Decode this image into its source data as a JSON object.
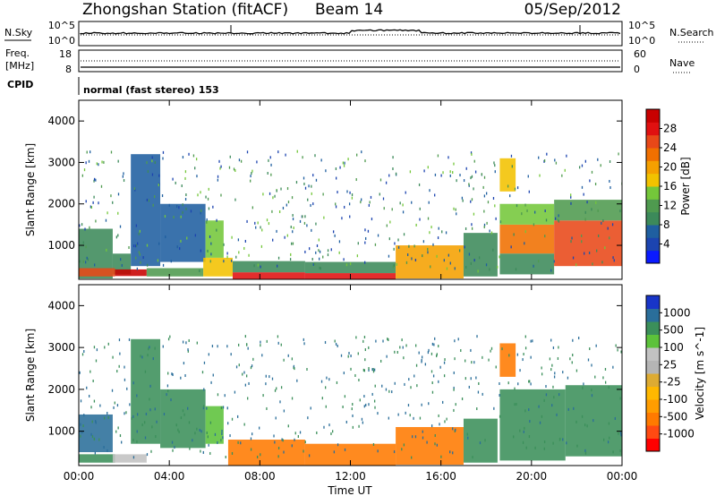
{
  "header": {
    "station": "Zhongshan Station (fitACF)",
    "beam": "Beam 14",
    "date": "05/Sep/2012"
  },
  "top_panel": {
    "nsky_label": "N.Sky",
    "nsky_ticks": [
      "10^5",
      "10^0"
    ],
    "nsearch_label": "N.Search",
    "nsearch_ticks": [
      "10^5",
      "10^0"
    ],
    "freq_label_1": "Freq.",
    "freq_label_2": "[MHz]",
    "freq_ticks": [
      "18",
      "8"
    ],
    "nave_label": "Nave",
    "nave_ticks": [
      "60",
      "0"
    ],
    "cpid_label": "CPID",
    "cpid_value": "normal (fast stereo) 153"
  },
  "colors": {
    "power_scale": [
      "#0a1aff",
      "#1c44b0",
      "#1f5fa0",
      "#3c8a5a",
      "#4f9a4f",
      "#74c73a",
      "#f2c200",
      "#f5a000",
      "#f07000",
      "#e84818",
      "#e01010",
      "#c80000"
    ],
    "velocity_scale": [
      "#ff0000",
      "#ff4a12",
      "#ff7a00",
      "#ff9d00",
      "#ffb800",
      "#ddab33",
      "#b5b5b5",
      "#c2c2c2",
      "#5cc23a",
      "#3b8f5a",
      "#2a6e9a",
      "#1835c8"
    ]
  },
  "chart_data": [
    {
      "type": "heatmap",
      "title": "",
      "xlabel": "Time UT",
      "ylabel": "Slant Range [km]",
      "xlim": [
        "00:00",
        "24:00"
      ],
      "ylim": [
        180,
        4500
      ],
      "x_ticks": [
        "00:00",
        "04:00",
        "08:00",
        "12:00",
        "16:00",
        "20:00",
        "00:00"
      ],
      "y_ticks": [
        1000,
        2000,
        3000,
        4000
      ],
      "colorbar": {
        "label": "Power [dB]",
        "range": [
          0,
          32
        ],
        "ticks": [
          4,
          8,
          12,
          16,
          20,
          24,
          28
        ]
      },
      "regions": [
        {
          "t0": 0.0,
          "t1": 1.5,
          "r0": 200,
          "r1": 1400,
          "value": 10
        },
        {
          "t0": 1.5,
          "t1": 2.3,
          "r0": 300,
          "r1": 800,
          "value": 8
        },
        {
          "t0": 2.3,
          "t1": 3.6,
          "r0": 500,
          "r1": 3200,
          "value": 7
        },
        {
          "t0": 3.6,
          "t1": 5.6,
          "r0": 600,
          "r1": 2000,
          "value": 6
        },
        {
          "t0": 5.6,
          "t1": 6.4,
          "r0": 700,
          "r1": 1600,
          "value": 14
        },
        {
          "t0": 0.0,
          "t1": 1.6,
          "r0": 250,
          "r1": 450,
          "value": 24
        },
        {
          "t0": 1.6,
          "t1": 3.0,
          "r0": 260,
          "r1": 420,
          "value": 30
        },
        {
          "t0": 3.0,
          "t1": 5.5,
          "r0": 250,
          "r1": 450,
          "value": 12
        },
        {
          "t0": 5.5,
          "t1": 6.8,
          "r0": 250,
          "r1": 700,
          "value": 18
        },
        {
          "t0": 6.8,
          "t1": 10.0,
          "r0": 180,
          "r1": 350,
          "value": 29
        },
        {
          "t0": 6.8,
          "t1": 10.0,
          "r0": 350,
          "r1": 620,
          "value": 10
        },
        {
          "t0": 10.0,
          "t1": 14.0,
          "r0": 180,
          "r1": 330,
          "value": 28
        },
        {
          "t0": 10.0,
          "t1": 14.0,
          "r0": 330,
          "r1": 600,
          "value": 9
        },
        {
          "t0": 14.0,
          "t1": 17.0,
          "r0": 200,
          "r1": 1000,
          "value": 20
        },
        {
          "t0": 17.0,
          "t1": 18.5,
          "r0": 250,
          "r1": 1300,
          "value": 10
        },
        {
          "t0": 18.6,
          "t1": 21.0,
          "r0": 800,
          "r1": 1500,
          "value": 22
        },
        {
          "t0": 18.6,
          "t1": 21.0,
          "r0": 1500,
          "r1": 2000,
          "value": 14
        },
        {
          "t0": 18.6,
          "t1": 21.0,
          "r0": 300,
          "r1": 800,
          "value": 8
        },
        {
          "t0": 21.0,
          "t1": 24.0,
          "r0": 500,
          "r1": 1600,
          "value": 24
        },
        {
          "t0": 21.0,
          "t1": 24.0,
          "r0": 1600,
          "r1": 2100,
          "value": 12
        },
        {
          "t0": 18.6,
          "t1": 19.3,
          "r0": 2300,
          "r1": 3100,
          "value": 16
        }
      ]
    },
    {
      "type": "heatmap",
      "title": "",
      "xlabel": "Time UT",
      "ylabel": "Slant Range [km]",
      "xlim": [
        "00:00",
        "24:00"
      ],
      "ylim": [
        180,
        4500
      ],
      "x_ticks": [
        "00:00",
        "04:00",
        "08:00",
        "12:00",
        "16:00",
        "20:00",
        "00:00"
      ],
      "y_ticks": [
        1000,
        2000,
        3000,
        4000
      ],
      "colorbar": {
        "label": "Velocity [m s^-1]",
        "ticks": [
          1000,
          500,
          100,
          25,
          -25,
          -100,
          -500,
          -1000
        ]
      },
      "regions": [
        {
          "t0": 0.0,
          "t1": 1.5,
          "r0": 500,
          "r1": 1400,
          "value": 800
        },
        {
          "t0": 0.0,
          "t1": 1.6,
          "r0": 250,
          "r1": 450,
          "value": 150
        },
        {
          "t0": 1.5,
          "t1": 3.0,
          "r0": 250,
          "r1": 450,
          "value": 60
        },
        {
          "t0": 2.3,
          "t1": 3.6,
          "r0": 700,
          "r1": 3200,
          "value": 200
        },
        {
          "t0": 3.6,
          "t1": 5.6,
          "r0": 600,
          "r1": 2000,
          "value": 120
        },
        {
          "t0": 5.6,
          "t1": 6.4,
          "r0": 700,
          "r1": 1600,
          "value": 80
        },
        {
          "t0": 6.6,
          "t1": 10.0,
          "r0": 180,
          "r1": 800,
          "value": -200
        },
        {
          "t0": 10.0,
          "t1": 14.0,
          "r0": 180,
          "r1": 700,
          "value": -150
        },
        {
          "t0": 14.0,
          "t1": 17.0,
          "r0": 200,
          "r1": 1100,
          "value": -400
        },
        {
          "t0": 17.0,
          "t1": 18.5,
          "r0": 250,
          "r1": 1300,
          "value": 150
        },
        {
          "t0": 18.6,
          "t1": 21.5,
          "r0": 300,
          "r1": 2000,
          "value": 150
        },
        {
          "t0": 21.5,
          "t1": 24.0,
          "r0": 400,
          "r1": 2100,
          "value": 300
        },
        {
          "t0": 18.6,
          "t1": 19.3,
          "r0": 2300,
          "r1": 3100,
          "value": -120
        }
      ]
    }
  ]
}
